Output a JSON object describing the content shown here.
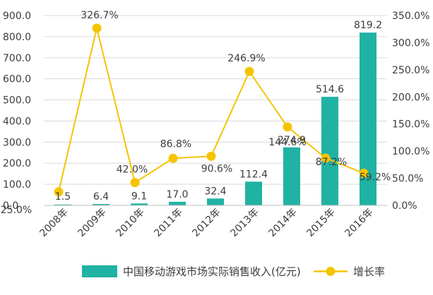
{
  "chart_data": {
    "type": "bar",
    "title": "",
    "categories": [
      "2008年",
      "2009年",
      "2010年",
      "2011年",
      "2012年",
      "2013年",
      "2014年",
      "2015年",
      "2016年"
    ],
    "series": [
      {
        "name": "中国移动游戏市场实际销售收入(亿元)",
        "type": "bar",
        "axis": "left",
        "values": [
          1.5,
          6.4,
          9.1,
          17.0,
          32.4,
          112.4,
          274.9,
          514.6,
          819.2
        ],
        "labels": [
          "1.5",
          "6.4",
          "9.1",
          "17.0",
          "32.4",
          "112.4",
          "274.9",
          "514.6",
          "819.2"
        ]
      },
      {
        "name": "增长率",
        "type": "line",
        "axis": "right",
        "values": [
          25.0,
          326.7,
          42.0,
          86.8,
          90.6,
          246.9,
          144.6,
          87.2,
          59.2
        ],
        "labels": [
          "25.0%",
          "326.7%",
          "42.0%",
          "86.8%",
          "90.6%",
          "246.9%",
          "144.6%",
          "87.2%",
          "59.2%"
        ]
      }
    ],
    "left_axis": {
      "range": [
        0,
        900
      ],
      "ticks": [
        "0.0",
        "100.0",
        "200.0",
        "300.0",
        "400.0",
        "500.0",
        "600.0",
        "700.0",
        "800.0",
        "900.0"
      ]
    },
    "right_axis": {
      "range": [
        0,
        350
      ],
      "ticks": [
        "0.0%",
        "50.0%",
        "100.0%",
        "150.0%",
        "200.0%",
        "250.0%",
        "300.0%",
        "350.0%"
      ]
    },
    "grid": true,
    "legend_position": "bottom",
    "colors": {
      "bar": "#20b2a3",
      "line": "#f5c400",
      "marker": "#f5c400",
      "grid": "#d9d9d9",
      "text": "#3c3c3c"
    }
  }
}
